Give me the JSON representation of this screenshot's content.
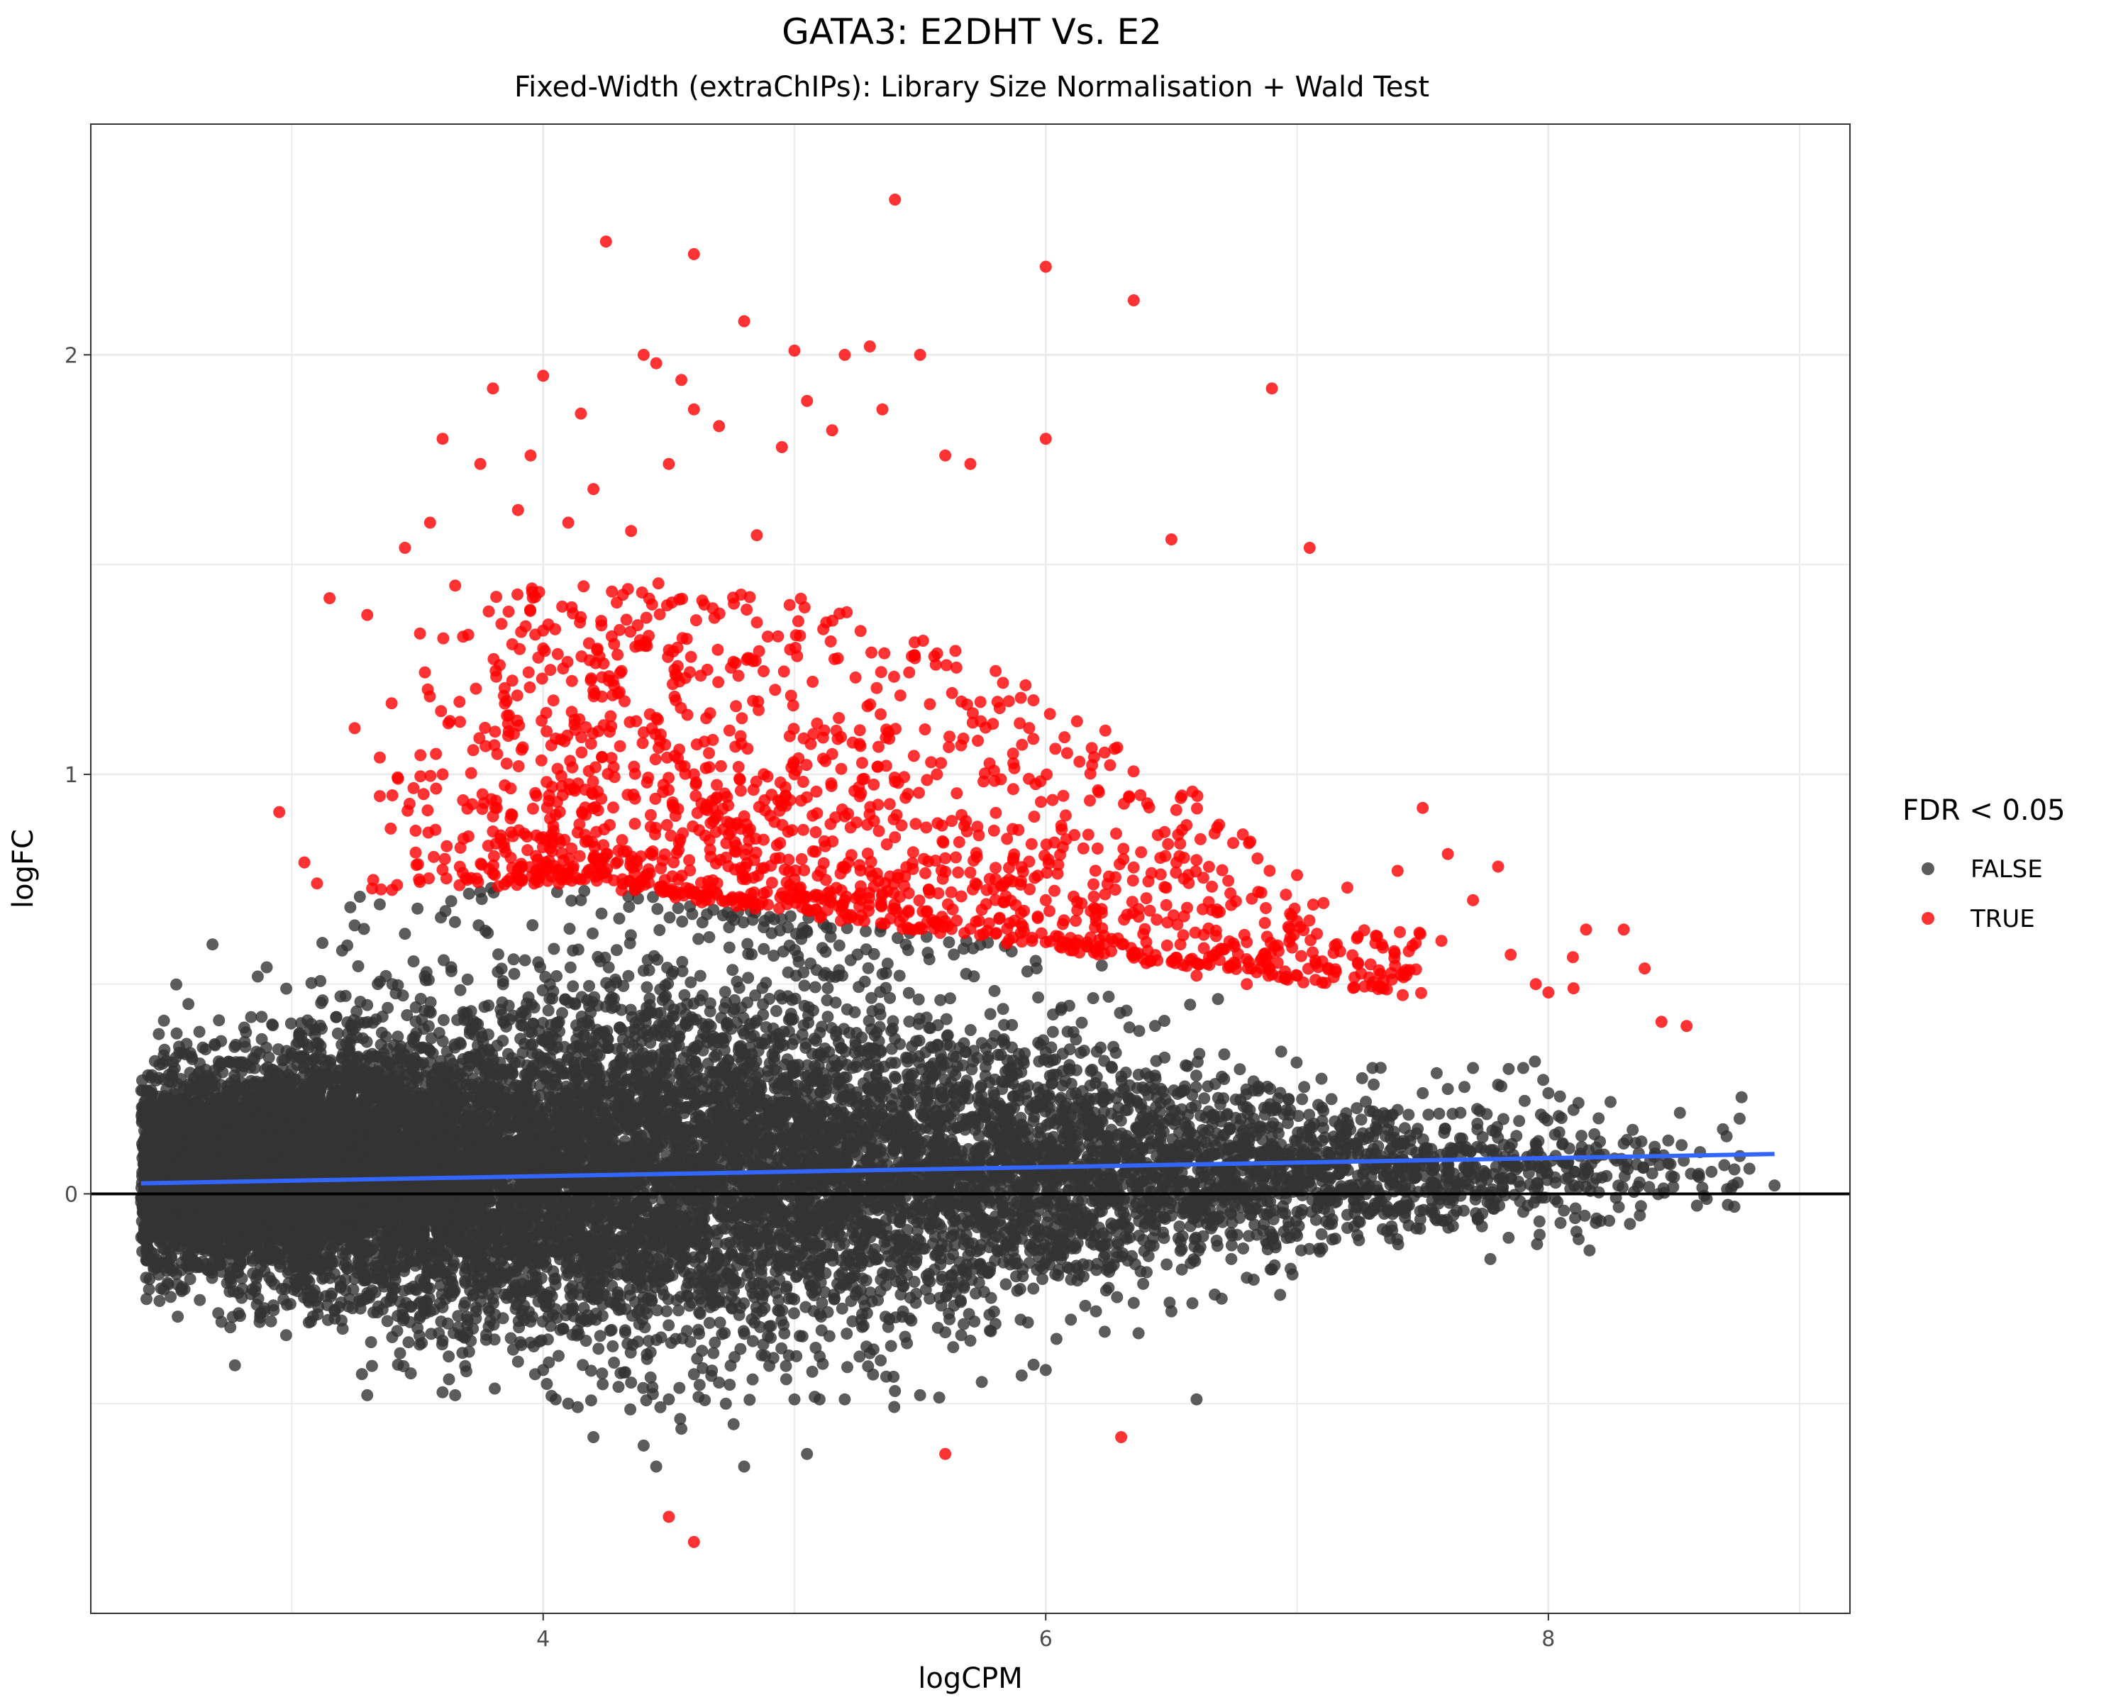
{
  "chart_data": {
    "type": "scatter",
    "title": "GATA3: E2DHT Vs. E2",
    "subtitle": "Fixed-Width (extraChIPs): Library Size Normalisation + Wald Test",
    "xlabel": "logCPM",
    "ylabel": "logFC",
    "xlim": [
      2.2,
      9.2
    ],
    "ylim": [
      -1.0,
      2.55
    ],
    "x_ticks": [
      4,
      6,
      8
    ],
    "x_tick_labels": [
      "4",
      "6",
      "8"
    ],
    "x_minor_grid": [
      3,
      5,
      7,
      9
    ],
    "y_ticks": [
      0,
      1,
      2
    ],
    "y_tick_labels": [
      "0",
      "1",
      "2"
    ],
    "y_minor_grid": [
      -0.5,
      0.5,
      1.5
    ],
    "grid": true,
    "reference_line": {
      "y": 0,
      "color": "#000000"
    },
    "trend_line": {
      "color": "#3366FF",
      "points": [
        [
          2.4,
          0.025
        ],
        [
          8.9,
          0.095
        ]
      ]
    },
    "legend": {
      "title": "FDR < 0.05",
      "position": "right",
      "entries": [
        {
          "label": "FALSE",
          "color": "#333333"
        },
        {
          "label": "TRUE",
          "color": "#FF0000"
        }
      ]
    },
    "series": [
      {
        "name": "FALSE",
        "color": "#333333",
        "points": [
          [
            2.4,
            -0.02
          ],
          [
            2.5,
            0.02
          ],
          [
            2.85,
            0.0
          ],
          [
            2.9,
            0.54
          ],
          [
            2.95,
            -0.05
          ],
          [
            3.0,
            0.33
          ],
          [
            3.05,
            0.2
          ],
          [
            3.1,
            0.12
          ],
          [
            3.2,
            0.58
          ],
          [
            3.25,
            0.64
          ],
          [
            3.3,
            0.45
          ],
          [
            3.3,
            -0.48
          ],
          [
            3.35,
            0.69
          ],
          [
            3.4,
            0.5
          ],
          [
            3.45,
            0.62
          ],
          [
            3.5,
            0.68
          ],
          [
            3.5,
            -0.32
          ],
          [
            3.55,
            -0.28
          ],
          [
            3.6,
            -0.35
          ],
          [
            3.65,
            -0.48
          ],
          [
            3.7,
            -0.3
          ],
          [
            3.75,
            0.72
          ],
          [
            3.8,
            -0.25
          ],
          [
            3.85,
            -0.2
          ],
          [
            3.9,
            -0.4
          ],
          [
            4.0,
            -0.42
          ],
          [
            4.05,
            -0.49
          ],
          [
            4.1,
            -0.5
          ],
          [
            4.15,
            0.7
          ],
          [
            4.2,
            -0.58
          ],
          [
            4.3,
            -0.46
          ],
          [
            4.35,
            -0.45
          ],
          [
            4.4,
            -0.6
          ],
          [
            4.45,
            -0.65
          ],
          [
            4.5,
            -0.49
          ],
          [
            4.55,
            -0.56
          ],
          [
            4.6,
            -0.43
          ],
          [
            4.7,
            -0.45
          ],
          [
            4.8,
            -0.65
          ],
          [
            4.9,
            -0.41
          ],
          [
            5.0,
            -0.49
          ],
          [
            5.05,
            -0.62
          ],
          [
            5.1,
            -0.49
          ],
          [
            5.2,
            -0.49
          ],
          [
            5.3,
            -0.38
          ],
          [
            5.4,
            -0.47
          ],
          [
            5.5,
            -0.48
          ],
          [
            5.6,
            -0.33
          ],
          [
            5.7,
            -0.35
          ],
          [
            5.8,
            -0.31
          ],
          [
            5.9,
            -0.3
          ],
          [
            6.0,
            -0.42
          ],
          [
            6.1,
            -0.3
          ],
          [
            6.2,
            -0.28
          ],
          [
            6.35,
            -0.26
          ],
          [
            6.5,
            -0.28
          ],
          [
            6.6,
            -0.49
          ],
          [
            6.7,
            -0.25
          ],
          [
            6.8,
            -0.2
          ],
          [
            6.9,
            -0.18
          ],
          [
            7.0,
            -0.1
          ],
          [
            7.1,
            -0.13
          ],
          [
            7.2,
            -0.05
          ],
          [
            7.3,
            0.3
          ],
          [
            7.4,
            0.2
          ],
          [
            7.5,
            0.24
          ],
          [
            7.6,
            0.25
          ],
          [
            7.7,
            0.3
          ],
          [
            7.8,
            0.26
          ],
          [
            7.9,
            0.3
          ],
          [
            8.0,
            0.24
          ],
          [
            8.1,
            0.2
          ],
          [
            8.2,
            0.18
          ],
          [
            8.3,
            0.12
          ],
          [
            8.5,
            0.04
          ],
          [
            8.6,
            0.04
          ],
          [
            8.8,
            0.06
          ],
          [
            8.9,
            0.02
          ]
        ]
      },
      {
        "name": "TRUE",
        "color": "#FF0000",
        "points": [
          [
            2.95,
            0.91
          ],
          [
            3.05,
            0.79
          ],
          [
            3.1,
            0.74
          ],
          [
            3.15,
            1.42
          ],
          [
            3.25,
            1.11
          ],
          [
            3.3,
            1.38
          ],
          [
            3.35,
            1.04
          ],
          [
            3.4,
            0.95
          ],
          [
            3.45,
            1.54
          ],
          [
            3.55,
            1.6
          ],
          [
            3.6,
            1.8
          ],
          [
            3.65,
            1.45
          ],
          [
            3.75,
            1.74
          ],
          [
            3.8,
            1.92
          ],
          [
            3.9,
            1.63
          ],
          [
            3.95,
            1.76
          ],
          [
            4.0,
            1.95
          ],
          [
            4.1,
            1.6
          ],
          [
            4.15,
            1.86
          ],
          [
            4.2,
            1.68
          ],
          [
            4.25,
            2.27
          ],
          [
            4.35,
            1.58
          ],
          [
            4.4,
            2.0
          ],
          [
            4.45,
            1.98
          ],
          [
            4.5,
            1.74
          ],
          [
            4.55,
            1.94
          ],
          [
            4.6,
            2.24
          ],
          [
            4.6,
            1.87
          ],
          [
            4.7,
            1.83
          ],
          [
            4.8,
            2.08
          ],
          [
            4.85,
            1.57
          ],
          [
            4.95,
            1.78
          ],
          [
            5.0,
            2.01
          ],
          [
            5.05,
            1.89
          ],
          [
            5.15,
            1.82
          ],
          [
            5.2,
            2.0
          ],
          [
            5.3,
            2.02
          ],
          [
            5.35,
            1.87
          ],
          [
            5.4,
            2.37
          ],
          [
            5.5,
            2.0
          ],
          [
            5.6,
            1.76
          ],
          [
            5.7,
            1.74
          ],
          [
            6.0,
            2.21
          ],
          [
            6.0,
            1.8
          ],
          [
            6.35,
            2.13
          ],
          [
            6.5,
            1.56
          ],
          [
            6.9,
            1.92
          ],
          [
            7.05,
            1.54
          ],
          [
            7.2,
            0.73
          ],
          [
            7.4,
            0.77
          ],
          [
            7.5,
            0.92
          ],
          [
            7.6,
            0.81
          ],
          [
            7.7,
            0.7
          ],
          [
            7.8,
            0.78
          ],
          [
            7.85,
            0.57
          ],
          [
            7.95,
            0.5
          ],
          [
            8.0,
            0.48
          ],
          [
            8.1,
            0.49
          ],
          [
            8.15,
            0.63
          ],
          [
            8.3,
            0.63
          ],
          [
            8.45,
            0.41
          ],
          [
            8.55,
            0.4
          ],
          [
            4.5,
            -0.77
          ],
          [
            4.6,
            -0.83
          ],
          [
            5.6,
            -0.62
          ],
          [
            6.3,
            -0.58
          ],
          [
            4.0,
            1.3
          ],
          [
            4.2,
            1.2
          ],
          [
            4.4,
            1.1
          ],
          [
            4.6,
            1.0
          ],
          [
            4.8,
            0.9
          ],
          [
            5.0,
            1.0
          ],
          [
            5.2,
            0.9
          ],
          [
            5.4,
            0.85
          ],
          [
            5.6,
            0.8
          ],
          [
            5.8,
            0.75
          ],
          [
            6.0,
            0.7
          ],
          [
            6.2,
            0.65
          ],
          [
            6.4,
            0.6
          ],
          [
            6.6,
            0.55
          ],
          [
            6.8,
            0.6
          ],
          [
            7.0,
            0.65
          ],
          [
            3.6,
            1.0
          ],
          [
            3.8,
            0.9
          ],
          [
            4.0,
            0.85
          ],
          [
            4.2,
            0.8
          ],
          [
            4.4,
            0.75
          ],
          [
            4.6,
            0.72
          ],
          [
            4.8,
            0.7
          ],
          [
            5.0,
            0.75
          ],
          [
            5.2,
            0.7
          ],
          [
            5.4,
            0.68
          ],
          [
            5.6,
            0.65
          ],
          [
            5.8,
            0.62
          ],
          [
            6.0,
            0.6
          ],
          [
            6.2,
            0.58
          ],
          [
            6.4,
            0.55
          ],
          [
            6.6,
            0.52
          ],
          [
            6.8,
            0.5
          ],
          [
            7.0,
            0.52
          ]
        ]
      }
    ],
    "dense_clouds": [
      {
        "description_series": "FALSE",
        "count": 14000,
        "x_range": [
          2.4,
          8.8
        ],
        "x_mode": 4.3
      },
      {
        "description_series": "TRUE",
        "count": 1500,
        "x_range": [
          3.3,
          7.5
        ],
        "x_mode": 4.8
      }
    ]
  }
}
